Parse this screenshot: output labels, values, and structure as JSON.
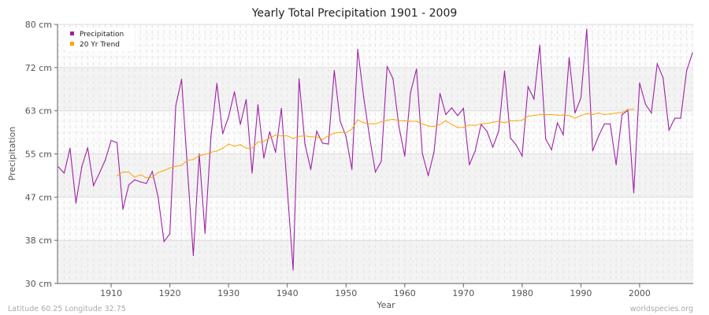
{
  "chart_data": {
    "type": "line",
    "title": "Yearly Total Precipitation 1901 - 2009",
    "xlabel": "Year",
    "ylabel": "Precipitation",
    "xlim": [
      1901,
      2009
    ],
    "ylim": [
      30,
      80
    ],
    "grid": true,
    "legend_position": "top-left",
    "x_ticks": [
      1910,
      1920,
      1930,
      1940,
      1950,
      1960,
      1970,
      1980,
      1990,
      2000
    ],
    "y_ticks": [
      {
        "value": 30,
        "label": "30 cm"
      },
      {
        "value": 38.33,
        "label": "38 cm"
      },
      {
        "value": 46.67,
        "label": "47 cm"
      },
      {
        "value": 55,
        "label": "55 cm"
      },
      {
        "value": 63.33,
        "label": "63 cm"
      },
      {
        "value": 71.67,
        "label": "72 cm"
      },
      {
        "value": 80,
        "label": "80 cm"
      }
    ],
    "series": [
      {
        "name": "Precipitation",
        "color": "#a020a8",
        "x_start": 1901,
        "values": [
          52.5,
          51.3,
          56.1,
          45.5,
          52.5,
          56.2,
          48.9,
          51.3,
          53.8,
          57.6,
          57.2,
          44.3,
          49.0,
          50.0,
          49.6,
          49.3,
          51.6,
          46.7,
          38.1,
          39.6,
          64.3,
          69.4,
          52.0,
          35.4,
          55.0,
          39.7,
          58.4,
          68.6,
          58.9,
          62.2,
          67.0,
          60.7,
          65.5,
          51.3,
          64.5,
          54.2,
          59.3,
          55.3,
          63.8,
          48.2,
          32.6,
          69.5,
          56.9,
          52.0,
          59.4,
          57.1,
          56.9,
          71.1,
          61.3,
          58.4,
          52.0,
          75.2,
          66.0,
          58.4,
          51.5,
          53.6,
          71.9,
          69.5,
          60.4,
          54.6,
          66.9,
          71.4,
          55.1,
          50.8,
          55.4,
          66.7,
          62.6,
          63.9,
          62.4,
          63.8,
          52.9,
          55.6,
          60.7,
          59.4,
          56.3,
          59.4,
          71.0,
          58.1,
          56.7,
          54.6,
          68.0,
          65.6,
          76.0,
          57.9,
          55.8,
          61.0,
          58.7,
          73.6,
          62.9,
          65.8,
          79.1,
          55.6,
          58.4,
          60.8,
          60.8,
          52.9,
          62.6,
          63.4,
          47.5,
          68.7,
          64.6,
          62.9,
          72.4,
          69.7,
          59.6,
          61.9,
          61.9,
          71.0,
          74.5
        ]
      },
      {
        "name": "20 Yr Trend",
        "color": "#ffa500",
        "x_start": 1911,
        "values": [
          50.8,
          51.5,
          51.5,
          50.5,
          51.0,
          50.4,
          50.5,
          51.4,
          51.8,
          52.3,
          52.6,
          52.8,
          53.8,
          53.9,
          54.7,
          54.9,
          55.3,
          55.6,
          56.1,
          56.9,
          56.5,
          56.8,
          56.1,
          56.1,
          57.3,
          57.4,
          58.1,
          58.6,
          58.5,
          58.5,
          58.0,
          58.4,
          58.5,
          58.3,
          58.3,
          57.8,
          58.5,
          59.0,
          59.2,
          59.1,
          59.8,
          61.6,
          61.0,
          60.8,
          60.8,
          61.2,
          61.5,
          61.7,
          61.4,
          61.4,
          61.3,
          61.3,
          60.8,
          60.4,
          60.3,
          60.7,
          61.4,
          60.7,
          60.1,
          60.1,
          60.6,
          60.5,
          60.8,
          60.9,
          61.1,
          61.3,
          61.0,
          61.4,
          61.4,
          61.5,
          62.3,
          62.4,
          62.6,
          62.6,
          62.6,
          62.5,
          62.5,
          62.4,
          61.9,
          62.4,
          62.8,
          62.6,
          62.9,
          62.6,
          62.7,
          62.9,
          63.0,
          63.6,
          63.6
        ]
      }
    ]
  },
  "footer": {
    "location": "Latitude 60.25 Longitude 32.75",
    "source": "worldspecies.org"
  }
}
